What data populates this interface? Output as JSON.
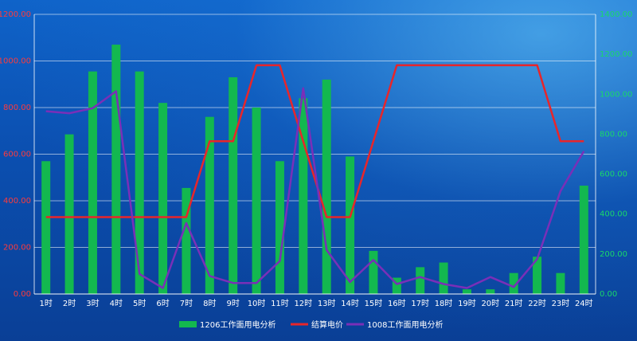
{
  "chart_data": {
    "type": "bar",
    "title": "",
    "categories": [
      "1时",
      "2时",
      "3时",
      "4时",
      "5时",
      "6时",
      "7时",
      "8时",
      "9时",
      "10时",
      "11时",
      "12时",
      "13时",
      "14时",
      "15时",
      "16时",
      "17时",
      "18时",
      "19时",
      "20时",
      "21时",
      "22时",
      "23时",
      "24时"
    ],
    "left_axis": {
      "ylim": [
        0,
        1200
      ],
      "ticks": [
        "0.00",
        "200.00",
        "400.00",
        "600.00",
        "800.00",
        "1000.00",
        "1200.00"
      ]
    },
    "right_axis": {
      "ylim": [
        0,
        1400
      ],
      "ticks": [
        "0.00",
        "200.00",
        "400.00",
        "600.00",
        "800.00",
        "1000.00",
        "1200.00",
        "1400.00"
      ]
    },
    "grid": true,
    "legend_position": "bottom",
    "series": [
      {
        "name": "1206工作面用电分析",
        "kind": "bar",
        "axis": "left",
        "color": "#13b84f",
        "values": [
          570,
          685,
          955,
          1070,
          955,
          820,
          455,
          760,
          930,
          800,
          570,
          840,
          920,
          590,
          185,
          70,
          115,
          135,
          20,
          20,
          90,
          160,
          90,
          465
        ]
      },
      {
        "name": "结算电价",
        "kind": "line",
        "axis": "right",
        "color": "#e8252a",
        "values": [
          385,
          385,
          385,
          385,
          385,
          385,
          385,
          765,
          765,
          1145,
          1145,
          765,
          385,
          385,
          765,
          1145,
          1145,
          1145,
          1145,
          1145,
          1145,
          1145,
          765,
          765
        ]
      },
      {
        "name": "1008工作面用电分析",
        "kind": "line",
        "axis": "right",
        "color": "#7a2fb8",
        "values": [
          915,
          905,
          930,
          1015,
          100,
          30,
          355,
          90,
          55,
          55,
          165,
          1030,
          220,
          60,
          170,
          50,
          85,
          50,
          30,
          85,
          35,
          175,
          515,
          715
        ]
      }
    ]
  }
}
